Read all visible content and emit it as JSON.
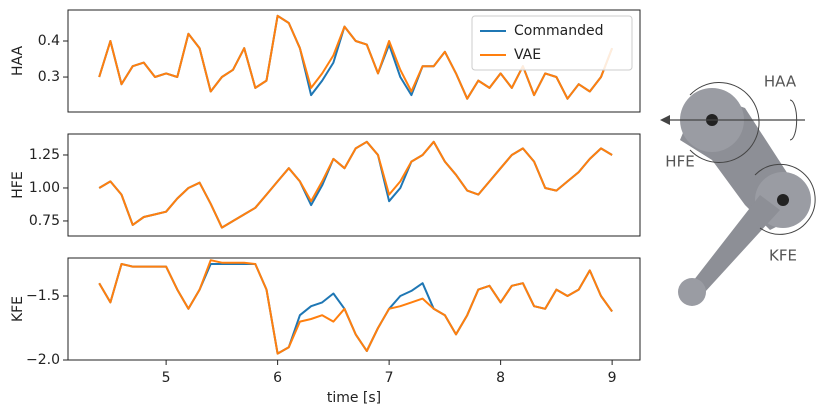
{
  "chart_data": [
    {
      "type": "line",
      "ylabel": "HAA",
      "legend": "upper right",
      "x": [
        4.4,
        4.5,
        4.6,
        4.7,
        4.8,
        4.9,
        5.0,
        5.1,
        5.2,
        5.3,
        5.4,
        5.5,
        5.6,
        5.7,
        5.8,
        5.9,
        6.0,
        6.1,
        6.2,
        6.3,
        6.4,
        6.5,
        6.6,
        6.7,
        6.8,
        6.9,
        7.0,
        7.1,
        7.2,
        7.3,
        7.4,
        7.5,
        7.6,
        7.7,
        7.8,
        7.9,
        8.0,
        8.1,
        8.2,
        8.3,
        8.4,
        8.5,
        8.6,
        8.7,
        8.8,
        8.9,
        9.0
      ],
      "series": [
        {
          "name": "Commanded",
          "color": "#1f77b4",
          "values": [
            0.3,
            0.4,
            0.28,
            0.33,
            0.34,
            0.3,
            0.31,
            0.3,
            0.42,
            0.38,
            0.26,
            0.3,
            0.32,
            0.38,
            0.27,
            0.29,
            0.47,
            0.45,
            0.38,
            0.25,
            0.29,
            0.34,
            0.44,
            0.4,
            0.39,
            0.31,
            0.39,
            0.3,
            0.25,
            0.33,
            0.33,
            0.37,
            0.31,
            0.24,
            0.29,
            0.27,
            0.31,
            0.27,
            0.33,
            0.25,
            0.31,
            0.3,
            0.24,
            0.28,
            0.26,
            0.3,
            0.38
          ]
        },
        {
          "name": "VAE",
          "color": "#ff7f0e",
          "values": [
            0.3,
            0.4,
            0.28,
            0.33,
            0.34,
            0.3,
            0.31,
            0.3,
            0.42,
            0.38,
            0.26,
            0.3,
            0.32,
            0.38,
            0.27,
            0.29,
            0.47,
            0.45,
            0.38,
            0.27,
            0.31,
            0.36,
            0.44,
            0.4,
            0.39,
            0.31,
            0.4,
            0.32,
            0.26,
            0.33,
            0.33,
            0.37,
            0.31,
            0.24,
            0.29,
            0.27,
            0.31,
            0.27,
            0.33,
            0.25,
            0.31,
            0.3,
            0.24,
            0.28,
            0.26,
            0.3,
            0.38
          ]
        }
      ],
      "xlim": [
        4.12,
        9.25
      ],
      "ylim": [
        0.203,
        0.486
      ],
      "yticks": [
        0.3,
        0.4
      ]
    },
    {
      "type": "line",
      "ylabel": "HFE",
      "x": [
        4.4,
        4.5,
        4.6,
        4.7,
        4.8,
        4.9,
        5.0,
        5.1,
        5.2,
        5.3,
        5.4,
        5.5,
        5.6,
        5.7,
        5.8,
        5.9,
        6.0,
        6.1,
        6.2,
        6.3,
        6.4,
        6.5,
        6.6,
        6.7,
        6.8,
        6.9,
        7.0,
        7.1,
        7.2,
        7.3,
        7.4,
        7.5,
        7.6,
        7.7,
        7.8,
        7.9,
        8.0,
        8.1,
        8.2,
        8.3,
        8.4,
        8.5,
        8.6,
        8.7,
        8.8,
        8.9,
        9.0
      ],
      "series": [
        {
          "name": "Commanded",
          "color": "#1f77b4",
          "values": [
            1.0,
            1.05,
            0.95,
            0.72,
            0.78,
            0.8,
            0.82,
            0.92,
            1.0,
            1.04,
            0.88,
            0.7,
            0.75,
            0.8,
            0.85,
            0.95,
            1.05,
            1.15,
            1.05,
            0.87,
            1.02,
            1.22,
            1.15,
            1.3,
            1.35,
            1.25,
            0.9,
            1.0,
            1.2,
            1.25,
            1.35,
            1.2,
            1.1,
            0.98,
            0.95,
            1.05,
            1.15,
            1.25,
            1.3,
            1.2,
            1.0,
            0.98,
            1.05,
            1.12,
            1.22,
            1.3,
            1.25
          ]
        },
        {
          "name": "VAE",
          "color": "#ff7f0e",
          "values": [
            1.0,
            1.05,
            0.95,
            0.72,
            0.78,
            0.8,
            0.82,
            0.92,
            1.0,
            1.04,
            0.88,
            0.7,
            0.75,
            0.8,
            0.85,
            0.95,
            1.05,
            1.15,
            1.05,
            0.9,
            1.05,
            1.22,
            1.15,
            1.3,
            1.35,
            1.25,
            0.95,
            1.05,
            1.2,
            1.25,
            1.35,
            1.2,
            1.1,
            0.98,
            0.95,
            1.05,
            1.15,
            1.25,
            1.3,
            1.2,
            1.0,
            0.98,
            1.05,
            1.12,
            1.22,
            1.3,
            1.25
          ]
        }
      ],
      "xlim": [
        4.12,
        9.25
      ],
      "ylim": [
        0.636,
        1.409
      ],
      "yticks": [
        0.75,
        {
          "value": 1,
          "label": "1.00"
        },
        1.25
      ]
    },
    {
      "type": "line",
      "ylabel": "KFE",
      "xlabel": "time [s]",
      "x": [
        4.4,
        4.5,
        4.6,
        4.7,
        4.8,
        4.9,
        5.0,
        5.1,
        5.2,
        5.3,
        5.4,
        5.5,
        5.6,
        5.7,
        5.8,
        5.9,
        6.0,
        6.1,
        6.2,
        6.3,
        6.4,
        6.5,
        6.6,
        6.7,
        6.8,
        6.9,
        7.0,
        7.1,
        7.2,
        7.3,
        7.4,
        7.5,
        7.6,
        7.7,
        7.8,
        7.9,
        8.0,
        8.1,
        8.2,
        8.3,
        8.4,
        8.5,
        8.6,
        8.7,
        8.8,
        8.9,
        9.0
      ],
      "series": [
        {
          "name": "Commanded",
          "color": "#1f77b4",
          "values": [
            -1.4,
            -1.55,
            -1.25,
            -1.27,
            -1.27,
            -1.27,
            -1.27,
            -1.45,
            -1.6,
            -1.45,
            -1.25,
            -1.25,
            -1.25,
            -1.25,
            -1.25,
            -1.45,
            -1.95,
            -1.9,
            -1.65,
            -1.58,
            -1.55,
            -1.48,
            -1.6,
            -1.8,
            -1.93,
            -1.75,
            -1.6,
            -1.5,
            -1.46,
            -1.4,
            -1.6,
            -1.65,
            -1.8,
            -1.65,
            -1.45,
            -1.42,
            -1.55,
            -1.42,
            -1.4,
            -1.58,
            -1.6,
            -1.45,
            -1.5,
            -1.45,
            -1.3,
            -1.5,
            -1.62
          ]
        },
        {
          "name": "VAE",
          "color": "#ff7f0e",
          "values": [
            -1.4,
            -1.55,
            -1.25,
            -1.27,
            -1.27,
            -1.27,
            -1.27,
            -1.45,
            -1.6,
            -1.45,
            -1.22,
            -1.24,
            -1.24,
            -1.24,
            -1.25,
            -1.45,
            -1.95,
            -1.9,
            -1.7,
            -1.68,
            -1.65,
            -1.7,
            -1.6,
            -1.8,
            -1.93,
            -1.75,
            -1.6,
            -1.58,
            -1.55,
            -1.52,
            -1.6,
            -1.65,
            -1.8,
            -1.65,
            -1.45,
            -1.42,
            -1.55,
            -1.42,
            -1.4,
            -1.58,
            -1.6,
            -1.45,
            -1.5,
            -1.45,
            -1.3,
            -1.5,
            -1.62
          ]
        }
      ],
      "xlim": [
        4.12,
        9.25
      ],
      "ylim": [
        -2.0,
        -1.203
      ],
      "yticks": [
        {
          "value": -1.5,
          "label": "−1.5"
        },
        {
          "value": -2,
          "label": "−2.0"
        }
      ],
      "xticks": [
        5,
        6,
        7,
        8,
        9
      ]
    }
  ],
  "diagram": {
    "labels": [
      "HAA",
      "HFE",
      "KFE"
    ]
  }
}
